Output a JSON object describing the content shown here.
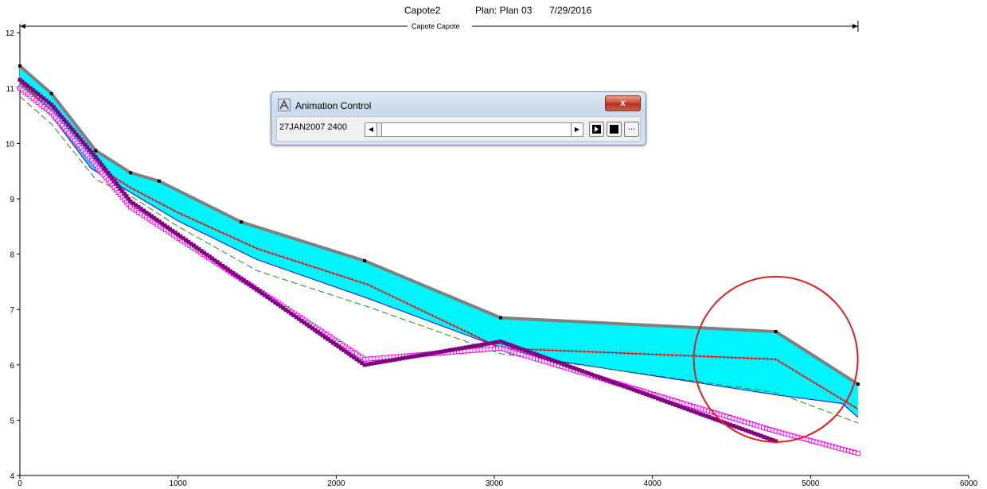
{
  "chart_data": {
    "type": "line",
    "title_parts": [
      "Capote2",
      "Plan: Plan 03",
      "7/29/2016"
    ],
    "reach_label": "Capote Capote",
    "xlim": [
      0,
      6000
    ],
    "ylim": [
      4,
      12.2
    ],
    "x_ticks": [
      0,
      1000,
      2000,
      3000,
      4000,
      5000,
      6000
    ],
    "y_ticks": [
      4,
      5,
      6,
      7,
      8,
      9,
      10,
      11,
      12
    ],
    "reach_extent": [
      0,
      5300
    ],
    "circle_center": [
      4780,
      6.1
    ],
    "series": [
      {
        "key": "bank_top",
        "color": "#808080",
        "x": [
          0,
          200,
          480,
          700,
          880,
          1400,
          2180,
          3040,
          4780,
          5300
        ],
        "y": [
          11.4,
          10.9,
          9.87,
          9.47,
          9.32,
          8.58,
          7.88,
          6.85,
          6.6,
          5.65
        ]
      },
      {
        "key": "water_surface_upper",
        "color": "#00ffff",
        "x": [
          0,
          200,
          480,
          700,
          880,
          1400,
          2180,
          3040,
          4780,
          5300
        ],
        "y": [
          11.38,
          10.88,
          9.85,
          9.45,
          9.3,
          8.56,
          7.86,
          6.83,
          6.58,
          5.63
        ]
      },
      {
        "key": "water_surface_lower",
        "color": "#0000ff",
        "x": [
          0,
          200,
          450,
          650,
          1000,
          1500,
          2200,
          3000,
          3100,
          4800,
          5200,
          5300
        ],
        "y": [
          11.0,
          10.5,
          9.55,
          9.2,
          8.6,
          7.9,
          7.2,
          6.35,
          6.2,
          5.45,
          5.3,
          5.05
        ]
      },
      {
        "key": "energy_grade",
        "color": "#ff0000",
        "x": [
          0,
          200,
          480,
          700,
          1000,
          1500,
          2200,
          3040,
          4780,
          5300
        ],
        "y": [
          11.1,
          10.6,
          9.6,
          9.2,
          8.75,
          8.1,
          7.45,
          6.3,
          6.1,
          5.2
        ]
      },
      {
        "key": "critical_depth",
        "color": "#228b22",
        "x": [
          0,
          200,
          480,
          700,
          1000,
          1500,
          2200,
          3040,
          4780,
          5300
        ],
        "y": [
          10.85,
          10.35,
          9.35,
          9.05,
          8.5,
          7.7,
          7.05,
          6.2,
          5.5,
          4.95
        ]
      },
      {
        "key": "bed_profile_1",
        "color": "#ff00ff",
        "x": [
          0,
          200,
          480,
          700,
          2180,
          3040,
          4780,
          5300
        ],
        "y": [
          11.0,
          10.55,
          9.6,
          8.85,
          6.1,
          6.3,
          4.8,
          4.4
        ]
      },
      {
        "key": "bed_profile_2",
        "color": "#800080",
        "x": [
          0,
          200,
          480,
          700,
          2180,
          3040,
          4780
        ],
        "y": [
          11.15,
          10.7,
          9.75,
          8.95,
          6.0,
          6.42,
          4.62
        ]
      }
    ]
  },
  "anim": {
    "title": "Animation Control",
    "time": "27JAN2007 2400",
    "close": "x",
    "more": "..."
  }
}
